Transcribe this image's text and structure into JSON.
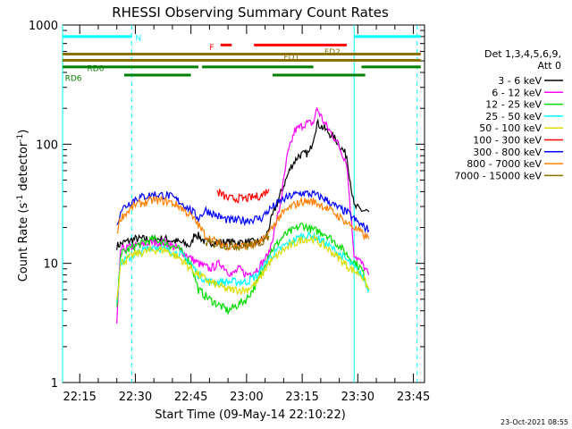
{
  "chart_data": {
    "type": "line",
    "title": "RHESSI Observing Summary Count Rates",
    "xlabel": "Start Time (09-May-14 22:10:22)",
    "ylabel": "Count Rate (s⁻¹ detector⁻¹)",
    "ylabel_parts": {
      "a": "Count Rate (s",
      "sup1": "-1",
      "b": " detector",
      "sup2": "-1",
      "c": ")"
    },
    "y_scale": "log",
    "ylim": [
      1,
      1000
    ],
    "xlim": [
      "22:10:22",
      "23:48:00"
    ],
    "x_ticks": [
      "22:15",
      "22:30",
      "22:45",
      "23:00",
      "23:15",
      "23:30",
      "23:45"
    ],
    "y_ticks": [
      "1",
      "10",
      "100",
      "1000"
    ],
    "legend": {
      "header": [
        "Det 1,3,4,5,6,9,",
        "Att 0"
      ],
      "placement": "right",
      "entries": [
        {
          "label": "3 - 6 keV",
          "color": "#000000"
        },
        {
          "label": "6 - 12 keV",
          "color": "#ff00ff"
        },
        {
          "label": "12 - 25 keV",
          "color": "#00dd00"
        },
        {
          "label": "25 - 50 keV",
          "color": "#00ffff"
        },
        {
          "label": "50 - 100 keV",
          "color": "#dddd00"
        },
        {
          "label": "100 - 300 keV",
          "color": "#ff0000"
        },
        {
          "label": "300 - 800 keV",
          "color": "#0000ff"
        },
        {
          "label": "800 - 7000 keV",
          "color": "#ff8000"
        },
        {
          "label": "7000 - 15000 keV",
          "color": "#8b7000"
        }
      ]
    },
    "flag_bars": [
      {
        "label": "N",
        "color": "#00ffff",
        "y": 800,
        "segments": [
          [
            "22:10:22",
            "22:29:00"
          ],
          [
            "23:29:00",
            "23:47:00"
          ]
        ]
      },
      {
        "label": "F",
        "color": "#ff0000",
        "y": 680,
        "segments": [
          [
            "22:53:00",
            "22:56:00"
          ],
          [
            "23:02:00",
            "23:27:00"
          ]
        ]
      },
      {
        "label": "FD1",
        "color": "#8b7000",
        "y": 570,
        "segments": [
          [
            "22:10:22",
            "23:47:00"
          ]
        ]
      },
      {
        "label": "FD2",
        "color": "#8b7000",
        "y": 505,
        "segments": [
          [
            "22:10:22",
            "23:47:00"
          ]
        ]
      },
      {
        "label": "RD0",
        "color": "#008000",
        "y": 445,
        "segments": [
          [
            "22:10:22",
            "22:47:00"
          ],
          [
            "22:48:00",
            "23:18:00"
          ],
          [
            "23:31:00",
            "23:47:00"
          ]
        ]
      },
      {
        "label": "RD6",
        "color": "#008000",
        "y": 380,
        "segments": [
          [
            "22:27:00",
            "22:45:00"
          ],
          [
            "23:07:00",
            "23:32:00"
          ]
        ]
      }
    ],
    "vlines": [
      {
        "t": "22:10:22",
        "style": "solid"
      },
      {
        "t": "22:29:00",
        "style": "dashed"
      },
      {
        "t": "23:29:00",
        "style": "solid"
      },
      {
        "t": "23:46:00",
        "style": "dashed"
      }
    ],
    "series": [
      {
        "name": "3 - 6 keV",
        "color": "#000000",
        "x": [
          "22:25",
          "22:27",
          "22:30",
          "22:34",
          "22:38",
          "22:42",
          "22:45",
          "22:46",
          "22:49",
          "22:55",
          "23:00",
          "23:03",
          "23:05",
          "23:07",
          "23:10",
          "23:12",
          "23:14",
          "23:17",
          "23:19",
          "23:21",
          "23:24",
          "23:27",
          "23:29",
          "23:31",
          "23:33"
        ],
        "values": [
          14,
          15,
          16,
          16,
          16,
          15,
          14,
          18,
          15,
          15,
          15,
          15,
          16,
          25,
          45,
          65,
          80,
          85,
          150,
          135,
          110,
          80,
          30,
          28,
          27
        ]
      },
      {
        "name": "6 - 12 keV",
        "color": "#ff00ff",
        "x": [
          "22:25",
          "22:26",
          "22:30",
          "22:35",
          "22:38",
          "22:42",
          "22:45",
          "22:47",
          "22:50",
          "22:53",
          "22:56",
          "22:58",
          "23:00",
          "23:03",
          "23:06",
          "23:09",
          "23:11",
          "23:13",
          "23:16",
          "23:18",
          "23:19",
          "23:21",
          "23:24",
          "23:27",
          "23:29",
          "23:31",
          "23:33"
        ],
        "values": [
          3,
          13,
          14,
          15,
          15,
          13,
          11,
          10,
          9,
          10,
          8,
          9,
          8,
          9,
          12,
          30,
          80,
          130,
          150,
          150,
          200,
          150,
          110,
          70,
          12,
          10,
          8
        ]
      },
      {
        "name": "12 - 25 keV",
        "color": "#00dd00",
        "x": [
          "22:25",
          "22:26",
          "22:30",
          "22:35",
          "22:38",
          "22:42",
          "22:45",
          "22:47",
          "22:50",
          "22:55",
          "23:00",
          "23:03",
          "23:06",
          "23:10",
          "23:15",
          "23:18",
          "23:21",
          "23:25",
          "23:28",
          "23:31",
          "23:33"
        ],
        "values": [
          4,
          12,
          14,
          16,
          15,
          13,
          10,
          6,
          5,
          4,
          5,
          7,
          12,
          17,
          21,
          19,
          18,
          14,
          11,
          9,
          6
        ]
      },
      {
        "name": "25 - 50 keV",
        "color": "#00ffff",
        "x": [
          "22:25",
          "22:26",
          "22:30",
          "22:35",
          "22:38",
          "22:42",
          "22:45",
          "22:47",
          "22:50",
          "22:55",
          "23:00",
          "23:03",
          "23:06",
          "23:10",
          "23:15",
          "23:18",
          "23:21",
          "23:25",
          "23:28",
          "23:31",
          "23:33"
        ],
        "values": [
          5,
          10,
          12,
          14,
          13,
          12,
          10,
          8,
          7,
          7,
          7,
          8,
          11,
          14,
          17,
          17,
          15,
          12,
          10,
          8,
          6
        ]
      },
      {
        "name": "50 - 100 keV",
        "color": "#dddd00",
        "x": [
          "22:25",
          "22:26",
          "22:30",
          "22:35",
          "22:38",
          "22:42",
          "22:45",
          "22:47",
          "22:50",
          "22:55",
          "23:00",
          "23:03",
          "23:06",
          "23:10",
          "23:15",
          "23:18",
          "23:21",
          "23:25",
          "23:28",
          "23:31",
          "23:33"
        ],
        "values": [
          5,
          10,
          12,
          13,
          13,
          11,
          9,
          8,
          7,
          6,
          6,
          7,
          10,
          13,
          16,
          16,
          14,
          11,
          9,
          8,
          6
        ]
      },
      {
        "name": "100 - 300 keV",
        "color": "#ff0000",
        "x": [
          "22:52",
          "22:55",
          "23:00",
          "23:04",
          "23:06"
        ],
        "values": [
          40,
          35,
          35,
          37,
          42
        ]
      },
      {
        "name": "300 - 800 keV",
        "color": "#0000ff",
        "x": [
          "22:25",
          "22:26",
          "22:30",
          "22:35",
          "22:39",
          "22:42",
          "22:45",
          "22:47",
          "22:49",
          "22:52",
          "22:55",
          "23:00",
          "23:04",
          "23:06",
          "23:09",
          "23:12",
          "23:15",
          "23:18",
          "23:21",
          "23:24",
          "23:27",
          "23:30",
          "23:33"
        ],
        "values": [
          20,
          28,
          35,
          38,
          37,
          33,
          28,
          24,
          28,
          25,
          23,
          23,
          24,
          28,
          33,
          37,
          39,
          38,
          35,
          30,
          27,
          22,
          19
        ]
      },
      {
        "name": "800 - 7000 keV",
        "color": "#ff8000",
        "x": [
          "22:25",
          "22:26",
          "22:30",
          "22:35",
          "22:39",
          "22:42",
          "22:45",
          "22:47",
          "22:49",
          "22:52",
          "22:55",
          "23:00",
          "23:04",
          "23:06",
          "23:09",
          "23:12",
          "23:15",
          "23:18",
          "23:21",
          "23:24",
          "23:27",
          "23:30",
          "23:33"
        ],
        "values": [
          18,
          24,
          31,
          34,
          33,
          30,
          25,
          21,
          17,
          15,
          14,
          14,
          15,
          18,
          25,
          30,
          33,
          33,
          30,
          26,
          22,
          19,
          16
        ]
      },
      {
        "name": "7000 - 15000 keV",
        "color": "#8b7000",
        "x": [
          "22:49",
          "22:55",
          "23:00",
          "23:04",
          "23:06"
        ],
        "values": [
          15,
          14,
          14,
          15,
          17
        ]
      }
    ]
  },
  "footer_date": "23-Oct-2021 08:55"
}
